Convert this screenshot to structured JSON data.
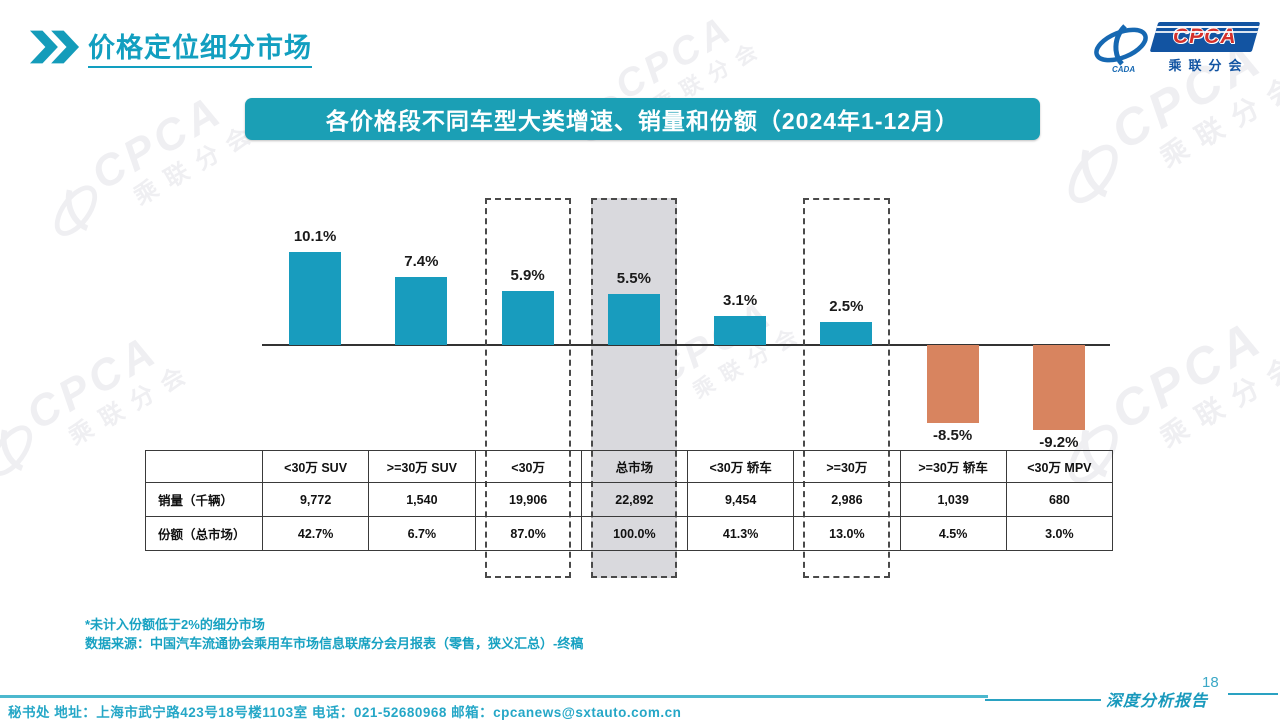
{
  "slide": {
    "title": "价格定位细分市场",
    "banner_title": "各价格段不同车型大类增速、销量和份额（2024年1-12月）"
  },
  "logo": {
    "acronym": "CPCA",
    "subtitle": "乘联分会"
  },
  "chart_data": {
    "type": "bar",
    "title": "各价格段不同车型大类增速、销量和份额（2024年1-12月）",
    "categories": [
      "<30万 SUV",
      ">=30万 SUV",
      "<30万",
      "总市场",
      "<30万 轿车",
      ">=30万",
      ">=30万 轿车",
      "<30万 MPV"
    ],
    "values": [
      10.1,
      7.4,
      5.9,
      5.5,
      3.1,
      2.5,
      -8.5,
      -9.2
    ],
    "value_labels": [
      "10.1%",
      "7.4%",
      "5.9%",
      "5.5%",
      "3.1%",
      "2.5%",
      "-8.5%",
      "-9.2%"
    ],
    "unit": "%",
    "positive_color": "#189cbe",
    "negative_color": "#d8845f",
    "highlight_dashed_categories": [
      "<30万",
      ">=30万"
    ],
    "highlight_filled_categories": [
      "总市场"
    ],
    "highlight_fill_color": "#d9d9dd",
    "grid": false,
    "legend": null,
    "table": {
      "row_headers": [
        "销量（千辆）",
        "份额（总市场）"
      ],
      "rows": [
        [
          "9,772",
          "1,540",
          "19,906",
          "22,892",
          "9,454",
          "2,986",
          "1,039",
          "680"
        ],
        [
          "42.7%",
          "6.7%",
          "87.0%",
          "100.0%",
          "41.3%",
          "13.0%",
          "4.5%",
          "3.0%"
        ]
      ]
    }
  },
  "notes": [
    "*未计入份额低于2%的细分市场",
    "数据来源：中国汽车流通协会乘用车市场信息联席分会月报表（零售，狭义汇总）-终稿"
  ],
  "footer": {
    "contact": "秘书处  地址：上海市武宁路423号18号楼1103室 电话：021-52680968  邮箱：cpcanews@sxtauto.com.cn",
    "report_label": "深度分析报告",
    "page_number": "18"
  },
  "watermark": {
    "acronym": "CPCA",
    "subtitle": "乘联分会"
  },
  "colors": {
    "accent_teal": "#129fc0",
    "banner_bg": "#1b9fb5",
    "positive_bar": "#189cbe",
    "negative_bar": "#d8845f"
  }
}
